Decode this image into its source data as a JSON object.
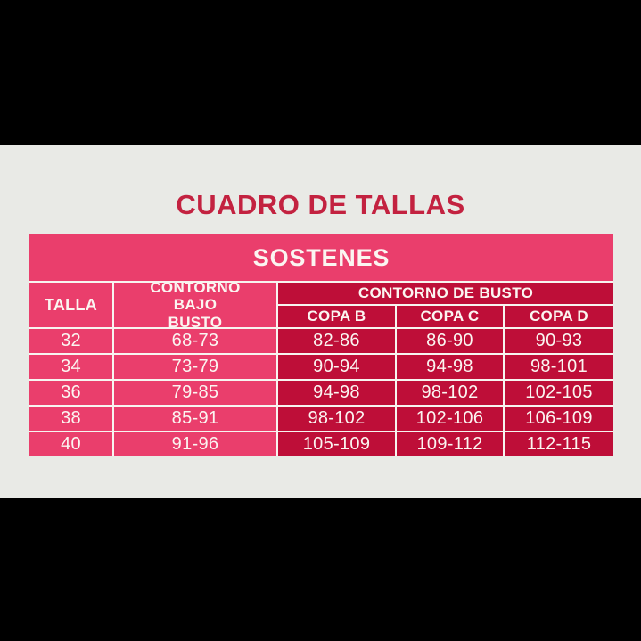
{
  "colors": {
    "letterbox_black": "#000000",
    "panel_gray": "#E9EAE6",
    "accent_pink": "#EA3E6C",
    "accent_crimson": "#BE0E38",
    "title_red": "#C32240",
    "text_light": "#FBF5F1",
    "divider_white": "#F7F4F0"
  },
  "chart_data": {
    "type": "table",
    "page_title": "CUADRO DE TALLAS",
    "table_title": "SOSTENES",
    "headers": {
      "talla": "TALLA",
      "bajo_busto": "CONTORNO BAJO BUSTO",
      "busto_group": "CONTORNO DE BUSTO",
      "copa_b": "COPA B",
      "copa_c": "COPA C",
      "copa_d": "COPA D"
    },
    "rows": [
      [
        "32",
        "68-73",
        "82-86",
        "86-90",
        "90-93"
      ],
      [
        "34",
        "73-79",
        "90-94",
        "94-98",
        "98-101"
      ],
      [
        "36",
        "79-85",
        "94-98",
        "98-102",
        "102-105"
      ],
      [
        "38",
        "85-91",
        "98-102",
        "102-106",
        "106-109"
      ],
      [
        "40",
        "91-96",
        "105-109",
        "109-112",
        "112-115"
      ]
    ]
  }
}
